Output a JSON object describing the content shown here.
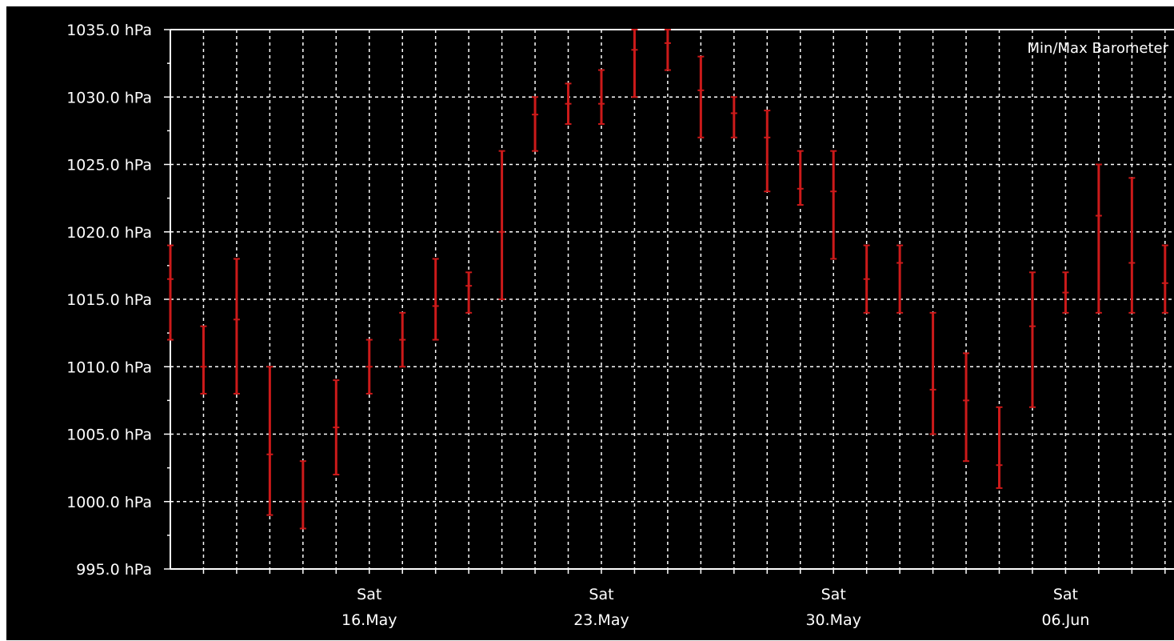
{
  "chart_data": {
    "type": "errorbar",
    "title": "Min/Max Barometer",
    "ylim": [
      995,
      1035
    ],
    "yticks": [
      995,
      1000,
      1005,
      1010,
      1015,
      1020,
      1025,
      1030,
      1035
    ],
    "ytick_labels": [
      "995.0 hPa",
      "1000.0 hPa",
      "1005.0 hPa",
      "1010.0 hPa",
      "1015.0 hPa",
      "1020.0 hPa",
      "1025.0 hPa",
      "1030.0 hPa",
      "1035.0 hPa"
    ],
    "x_start": "2020-05-10",
    "x_end": "2020-06-10",
    "x_day_labels": [
      {
        "date": "2020-05-16",
        "weekday": "Sat",
        "label": "16.May"
      },
      {
        "date": "2020-05-23",
        "weekday": "Sat",
        "label": "23.May"
      },
      {
        "date": "2020-05-30",
        "weekday": "Sat",
        "label": "30.May"
      },
      {
        "date": "2020-06-06",
        "weekday": "Sat",
        "label": "06.Jun"
      }
    ],
    "grid": true,
    "series_color": "#cc1a1a",
    "grid_color": "#ffffff",
    "background": "#000000",
    "points": [
      {
        "date": "2020-05-10",
        "min": 1012.0,
        "mean": 1016.5,
        "max": 1019.0
      },
      {
        "date": "2020-05-11",
        "min": 1008.0,
        "mean": 1010.0,
        "max": 1013.0
      },
      {
        "date": "2020-05-12",
        "min": 1008.0,
        "mean": 1013.5,
        "max": 1018.0
      },
      {
        "date": "2020-05-13",
        "min": 999.0,
        "mean": 1003.5,
        "max": 1010.0
      },
      {
        "date": "2020-05-14",
        "min": 998.0,
        "mean": 1000.0,
        "max": 1003.0
      },
      {
        "date": "2020-05-15",
        "min": 1002.0,
        "mean": 1005.5,
        "max": 1009.0
      },
      {
        "date": "2020-05-16",
        "min": 1008.0,
        "mean": 1010.0,
        "max": 1012.0
      },
      {
        "date": "2020-05-17",
        "min": 1010.0,
        "mean": 1012.0,
        "max": 1014.0
      },
      {
        "date": "2020-05-18",
        "min": 1012.0,
        "mean": 1014.5,
        "max": 1018.0
      },
      {
        "date": "2020-05-19",
        "min": 1014.0,
        "mean": 1016.0,
        "max": 1017.0
      },
      {
        "date": "2020-05-20",
        "min": 1015.0,
        "mean": 1020.0,
        "max": 1026.0
      },
      {
        "date": "2020-05-21",
        "min": 1026.0,
        "mean": 1028.7,
        "max": 1030.0
      },
      {
        "date": "2020-05-22",
        "min": 1028.0,
        "mean": 1029.5,
        "max": 1031.0
      },
      {
        "date": "2020-05-23",
        "min": 1028.0,
        "mean": 1029.5,
        "max": 1032.0
      },
      {
        "date": "2020-05-24",
        "min": 1030.0,
        "mean": 1033.5,
        "max": 1035.0
      },
      {
        "date": "2020-05-25",
        "min": 1032.0,
        "mean": 1034.0,
        "max": 1035.0
      },
      {
        "date": "2020-05-26",
        "min": 1027.0,
        "mean": 1030.5,
        "max": 1033.0
      },
      {
        "date": "2020-05-27",
        "min": 1027.0,
        "mean": 1028.8,
        "max": 1030.0
      },
      {
        "date": "2020-05-28",
        "min": 1023.0,
        "mean": 1027.0,
        "max": 1029.0
      },
      {
        "date": "2020-05-29",
        "min": 1022.0,
        "mean": 1023.2,
        "max": 1026.0
      },
      {
        "date": "2020-05-30",
        "min": 1018.0,
        "mean": 1023.0,
        "max": 1026.0
      },
      {
        "date": "2020-05-31",
        "min": 1014.0,
        "mean": 1016.5,
        "max": 1019.0
      },
      {
        "date": "2020-06-01",
        "min": 1014.0,
        "mean": 1017.7,
        "max": 1019.0
      },
      {
        "date": "2020-06-02",
        "min": 1005.0,
        "mean": 1008.3,
        "max": 1014.0
      },
      {
        "date": "2020-06-03",
        "min": 1003.0,
        "mean": 1007.5,
        "max": 1011.0
      },
      {
        "date": "2020-06-04",
        "min": 1001.0,
        "mean": 1002.7,
        "max": 1007.0
      },
      {
        "date": "2020-06-05",
        "min": 1007.0,
        "mean": 1013.0,
        "max": 1017.0
      },
      {
        "date": "2020-06-06",
        "min": 1014.0,
        "mean": 1015.5,
        "max": 1017.0
      },
      {
        "date": "2020-06-07",
        "min": 1014.0,
        "mean": 1021.2,
        "max": 1025.0
      },
      {
        "date": "2020-06-08",
        "min": 1014.0,
        "mean": 1017.7,
        "max": 1024.0
      },
      {
        "date": "2020-06-09",
        "min": 1014.0,
        "mean": 1016.2,
        "max": 1019.0
      }
    ]
  }
}
